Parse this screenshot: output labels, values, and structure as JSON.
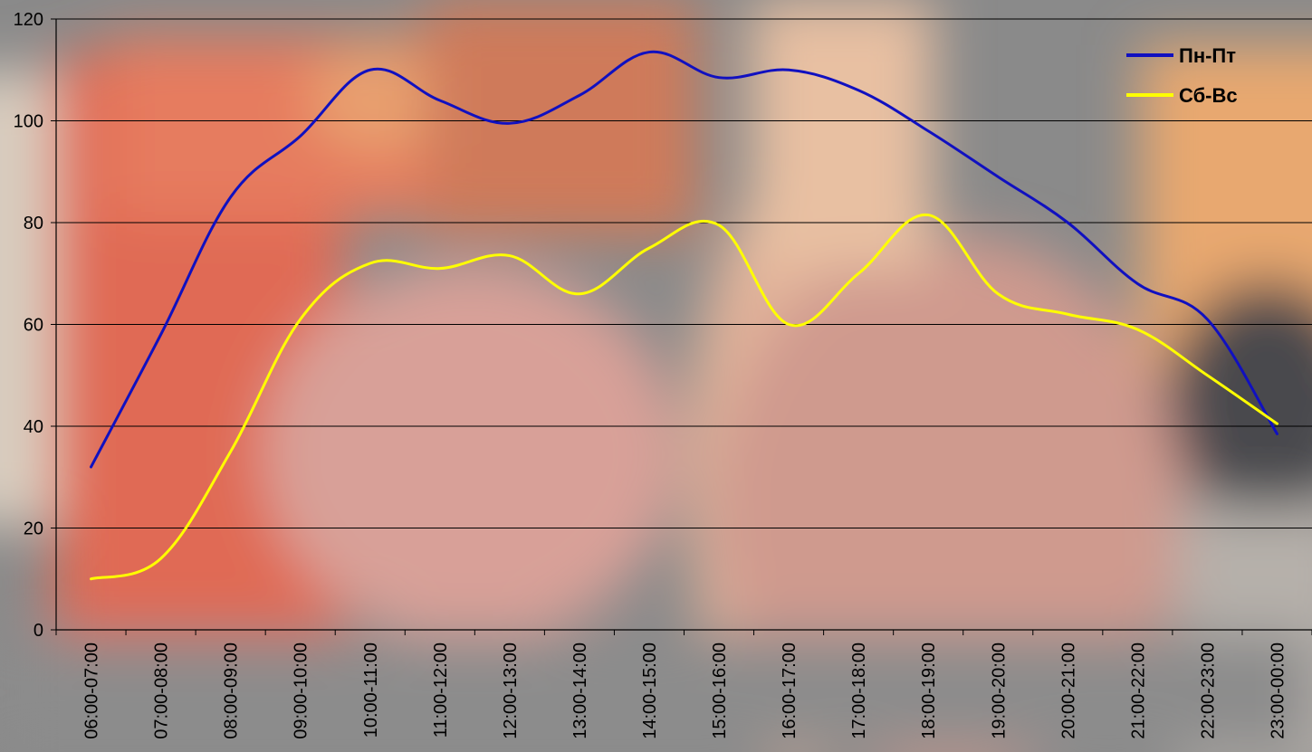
{
  "chart_data": {
    "type": "line",
    "categories": [
      "06:00-07:00",
      "07:00-08:00",
      "08:00-09:00",
      "09:00-10:00",
      "10:00-11:00",
      "11:00-12:00",
      "12:00-13:00",
      "13:00-14:00",
      "14:00-15:00",
      "15:00-16:00",
      "16:00-17:00",
      "17:00-18:00",
      "18:00-19:00",
      "19:00-20:00",
      "20:00-21:00",
      "21:00-22:00",
      "22:00-23:00",
      "23:00-00:00"
    ],
    "series": [
      {
        "name": "Пн-Пт",
        "color": "#1010c0",
        "values": [
          32,
          58,
          85,
          97,
          110,
          104,
          99.5,
          105,
          113.5,
          108.5,
          110,
          106,
          98,
          89,
          80,
          68,
          61,
          38.5
        ]
      },
      {
        "name": "Сб-Вс",
        "color": "#ffff00",
        "values": [
          10,
          14,
          35,
          61,
          72,
          71,
          73.5,
          66,
          75,
          79.5,
          60,
          70,
          81.5,
          66,
          62,
          59,
          50,
          40.5
        ]
      }
    ],
    "ylim": [
      0,
      120
    ],
    "yticks": [
      0,
      20,
      40,
      60,
      80,
      100,
      120
    ],
    "grid": true,
    "legend_position": "top-right",
    "title": "",
    "xlabel": "",
    "ylabel": ""
  }
}
